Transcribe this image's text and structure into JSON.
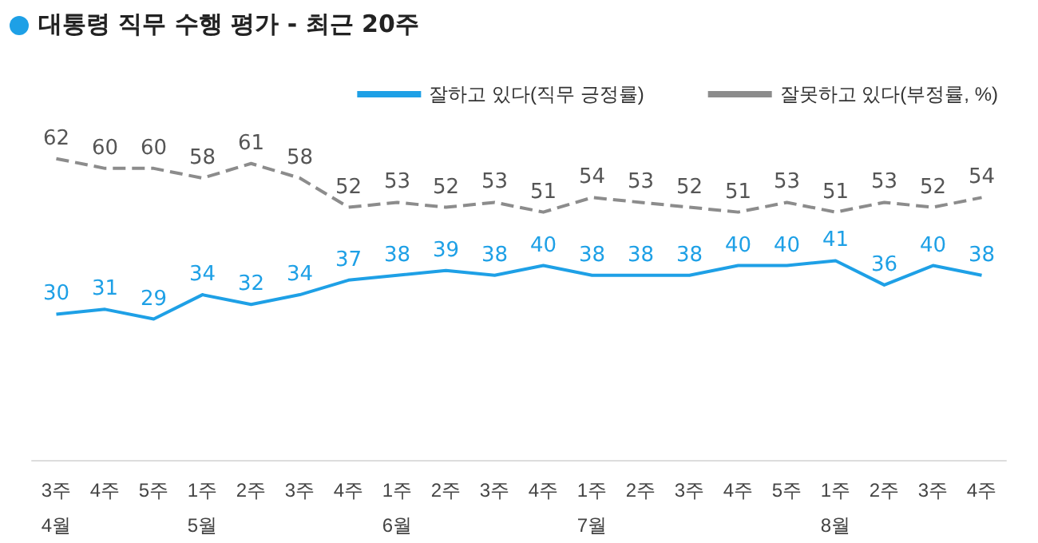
{
  "chart_data": {
    "type": "line",
    "title": "대통령 직무 수행 평가 - 최근 20주",
    "categories": [
      "3주\n4월",
      "4주",
      "5주",
      "1주\n5월",
      "2주",
      "3주",
      "4주",
      "1주\n6월",
      "2주",
      "3주",
      "4주",
      "1주\n7월",
      "2주",
      "3주",
      "4주",
      "5주",
      "1주\n8월",
      "2주",
      "3주",
      "4주"
    ],
    "series": [
      {
        "name": "잘하고 있다(직무 긍정률)",
        "color": "#1ea0e6",
        "line_style": "solid",
        "values": [
          30,
          31,
          29,
          34,
          32,
          34,
          37,
          38,
          39,
          38,
          40,
          38,
          38,
          38,
          40,
          40,
          41,
          36,
          40,
          38
        ]
      },
      {
        "name": "잘못하고 있다(부정률, %)",
        "color": "#8c8c8c",
        "line_style": "dashed",
        "values": [
          62,
          60,
          60,
          58,
          61,
          58,
          52,
          53,
          52,
          53,
          51,
          54,
          53,
          52,
          51,
          53,
          51,
          53,
          52,
          54
        ]
      }
    ],
    "data_labels": true,
    "marker": "none",
    "grid": false,
    "legend": "top right"
  }
}
